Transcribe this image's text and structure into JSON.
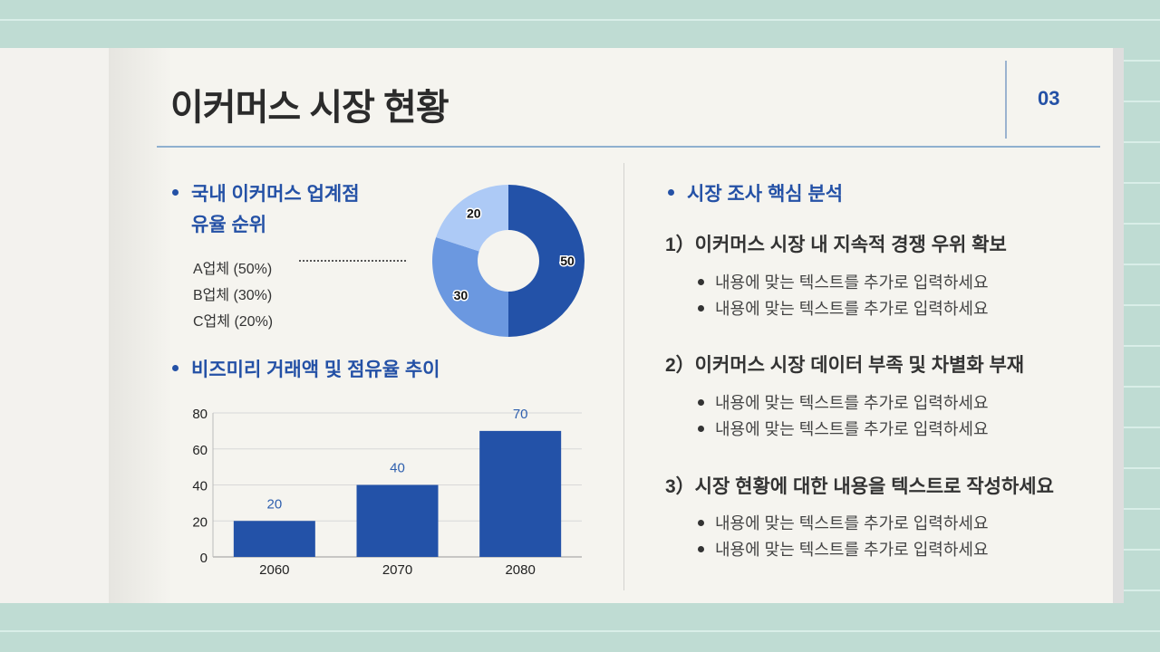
{
  "header": {
    "title": "이커머스 시장 현황",
    "page_number": "03"
  },
  "left": {
    "section1_title_line1": "국내 이커머스 업계점",
    "section1_title_line2": "유율 순위",
    "legend": [
      "A업체 (50%)",
      "B업체 (30%)",
      "C업체 (20%)"
    ],
    "section2_title": "비즈미리 거래액 및 점유율 추이"
  },
  "right": {
    "title": "시장 조사 핵심 분석",
    "points": [
      {
        "heading": "1）이커머스 시장 내 지속적 경쟁 우위 확보",
        "items": [
          "내용에 맞는 텍스트를 추가로 입력하세요",
          "내용에 맞는 텍스트를 추가로 입력하세요"
        ]
      },
      {
        "heading": "2）이커머스 시장 데이터 부족 및 차별화 부재",
        "items": [
          "내용에 맞는 텍스트를 추가로 입력하세요",
          "내용에 맞는 텍스트를 추가로 입력하세요"
        ]
      },
      {
        "heading": "3）시장 현황에 대한 내용을 텍스트로 작성하세요",
        "items": [
          "내용에 맞는 텍스트를 추가로 입력하세요",
          "내용에 맞는 텍스트를 추가로 입력하세요"
        ]
      }
    ]
  },
  "colors": {
    "accent": "#2451a6",
    "dark_blue": "#2352a8",
    "mid_blue": "#6b98e0",
    "light_blue": "#adcaf6",
    "background": "#bfdcd3"
  },
  "chart_data": [
    {
      "type": "pie",
      "variant": "donut",
      "categories": [
        "A업체",
        "B업체",
        "C업체"
      ],
      "values": [
        50,
        30,
        20
      ],
      "data_labels": [
        "50",
        "30",
        "20"
      ],
      "colors": [
        "#2352a8",
        "#6b98e0",
        "#adcaf6"
      ]
    },
    {
      "type": "bar",
      "categories": [
        "2060",
        "2070",
        "2080"
      ],
      "values": [
        20,
        40,
        70
      ],
      "data_labels": [
        "20",
        "40",
        "70"
      ],
      "ylim": [
        0,
        80
      ],
      "yticks": [
        "0",
        "20",
        "40",
        "60",
        "80"
      ],
      "grid": true,
      "color": "#2352a8"
    }
  ]
}
